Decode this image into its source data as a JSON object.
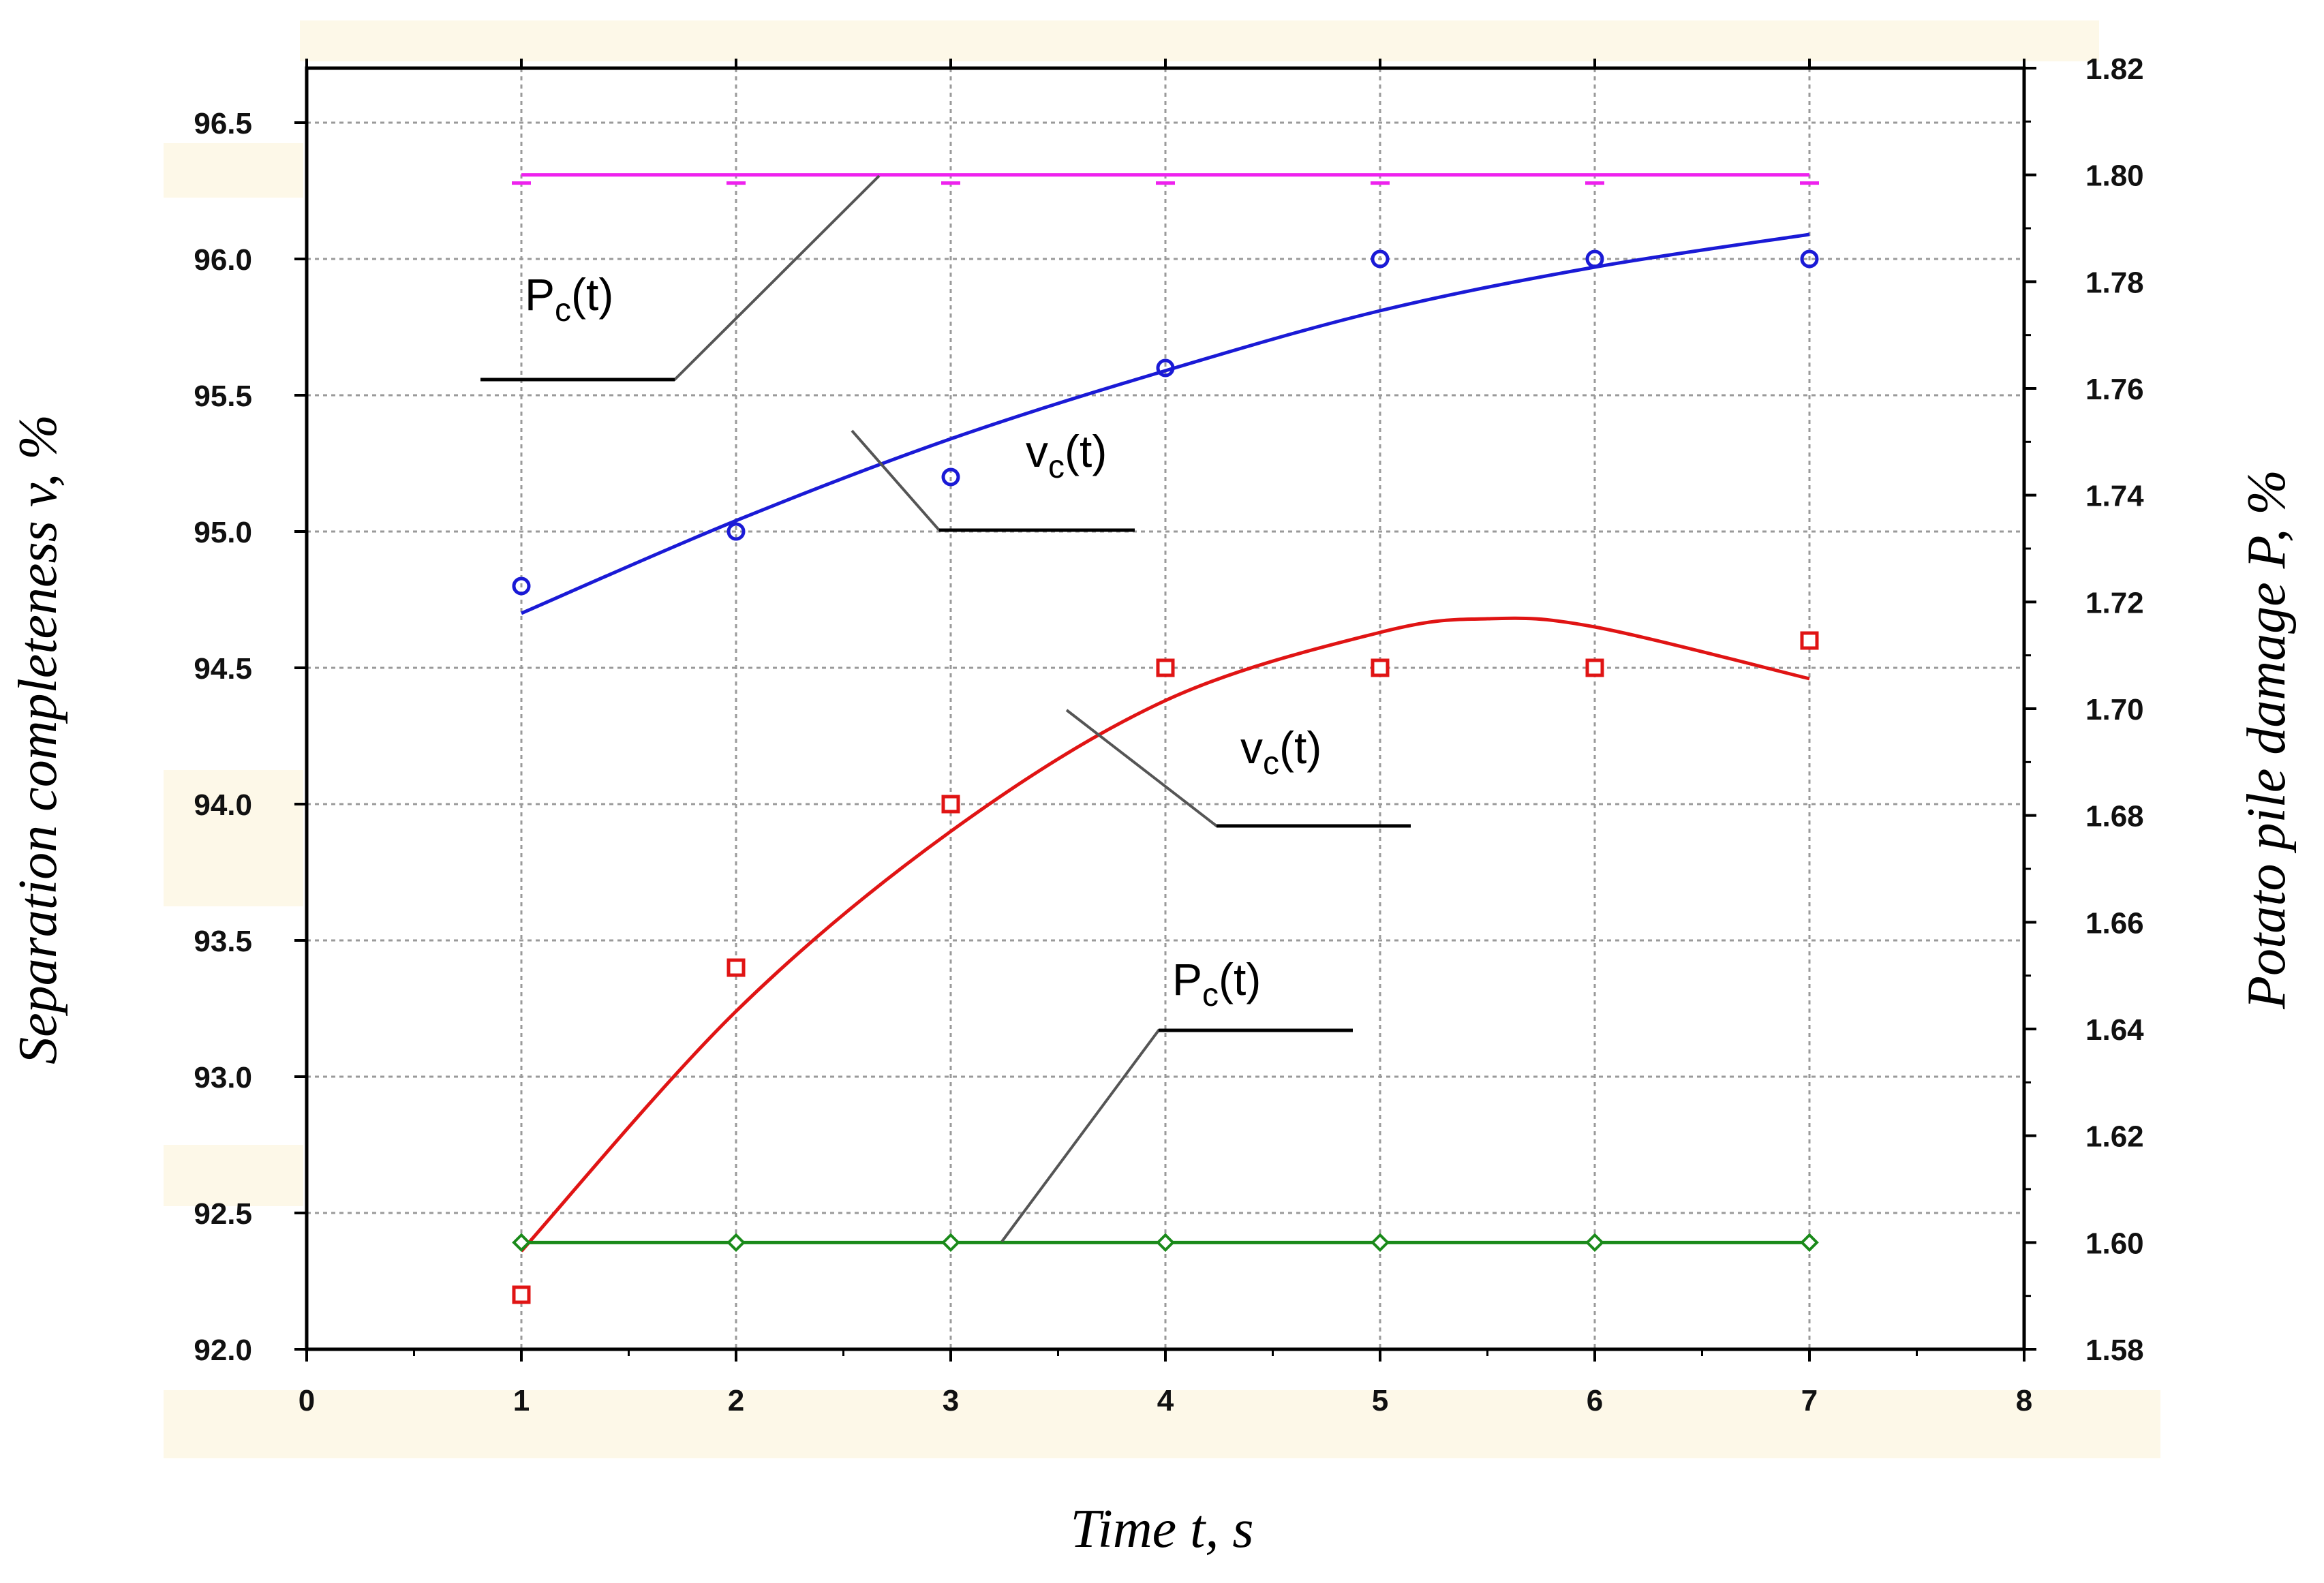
{
  "chart_data": {
    "type": "line",
    "title": "",
    "xlabel": "Time t, s",
    "ylabel_left": "Separation completeness v, %",
    "ylabel_right": "Potato pile damage P, %",
    "xlim": [
      0,
      8
    ],
    "ylim_left": [
      92.0,
      96.7
    ],
    "ylim_right": [
      1.58,
      1.82
    ],
    "x_ticks": [
      "0",
      "1",
      "2",
      "3",
      "4",
      "5",
      "6",
      "7",
      "8"
    ],
    "y_left_ticks": [
      "92.0",
      "92.5",
      "93.0",
      "93.5",
      "94.0",
      "94.5",
      "95.0",
      "95.5",
      "96.0",
      "96.5"
    ],
    "y_right_ticks": [
      "1.58",
      "1.60",
      "1.62",
      "1.64",
      "1.66",
      "1.68",
      "1.70",
      "1.72",
      "1.74",
      "1.76",
      "1.78",
      "1.80",
      "1.82"
    ],
    "grid": true,
    "colors": {
      "blue": "#1a1ad6",
      "red": "#e01414",
      "magenta": "#ee22ee",
      "green": "#1a8a1a",
      "leader": "#555555",
      "band": "#fdf8e8"
    },
    "series": [
      {
        "axis": "left",
        "color": "blue",
        "marker": "circle",
        "points_x": [
          1,
          2,
          3,
          4,
          5,
          6,
          7
        ],
        "points_y": [
          94.8,
          95.0,
          95.2,
          95.6,
          96.0,
          96.0,
          96.0
        ],
        "fit_x": [
          1,
          2,
          3,
          4,
          5,
          6,
          7
        ],
        "fit_y": [
          94.7,
          95.04,
          95.34,
          95.59,
          95.81,
          95.97,
          96.09
        ]
      },
      {
        "axis": "left",
        "color": "red",
        "marker": "square",
        "points_x": [
          1,
          2,
          3,
          4,
          5,
          6,
          7
        ],
        "points_y": [
          92.2,
          93.4,
          94.0,
          94.5,
          94.5,
          94.5,
          94.6
        ],
        "fit_x": [
          1,
          2,
          3,
          4,
          5,
          5.5,
          6,
          7
        ],
        "fit_y": [
          92.36,
          93.24,
          93.9,
          94.38,
          94.63,
          94.68,
          94.65,
          94.46
        ]
      },
      {
        "axis": "right",
        "color": "magenta",
        "marker": "dash",
        "points_x": [
          1,
          2,
          3,
          4,
          5,
          6,
          7
        ],
        "points_y": [
          1.8,
          1.8,
          1.8,
          1.8,
          1.8,
          1.8,
          1.8
        ],
        "fit_x": [
          1,
          7
        ],
        "fit_y": [
          1.8,
          1.8
        ]
      },
      {
        "axis": "right",
        "color": "green",
        "marker": "diamond",
        "points_x": [
          1,
          2,
          3,
          4,
          5,
          6,
          7
        ],
        "points_y": [
          1.6,
          1.6,
          1.6,
          1.6,
          1.6,
          1.6,
          1.6
        ],
        "fit_x": [
          1,
          7
        ],
        "fit_y": [
          1.6,
          1.6
        ]
      }
    ],
    "annotations": [
      {
        "main": "P",
        "sub": "c",
        "tail": "(t)"
      },
      {
        "main": "v",
        "sub": "c",
        "tail": "(t)"
      },
      {
        "main": "v",
        "sub": "c",
        "tail": "(t)"
      },
      {
        "main": "P",
        "sub": "c",
        "tail": "(t)"
      }
    ]
  }
}
